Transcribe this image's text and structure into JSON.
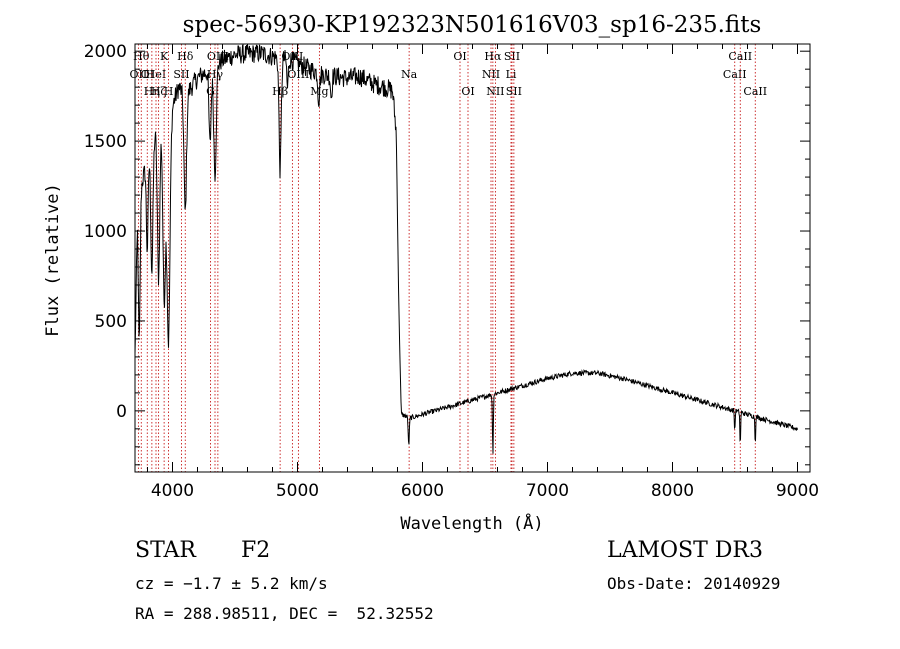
{
  "chart_data": {
    "type": "line",
    "title": "spec-56930-KP192323N501616V03_sp16-235.fits",
    "xlabel": "Wavelength (Å)",
    "ylabel": "Flux (relative)",
    "xlim": [
      3700,
      9100
    ],
    "ylim": [
      -340,
      2040
    ],
    "xticks": [
      4000,
      5000,
      6000,
      7000,
      8000,
      9000
    ],
    "yticks": [
      0,
      500,
      1000,
      1500,
      2000
    ],
    "series": [
      {
        "name": "flux",
        "anchors": [
          [
            3700,
            300
          ],
          [
            3720,
            1100
          ],
          [
            3750,
            1250
          ],
          [
            3800,
            1400
          ],
          [
            3850,
            1500
          ],
          [
            3900,
            1680
          ],
          [
            3950,
            1600
          ],
          [
            4000,
            1700
          ],
          [
            4050,
            1800
          ],
          [
            4100,
            1750
          ],
          [
            4200,
            1850
          ],
          [
            4300,
            1900
          ],
          [
            4400,
            1950
          ],
          [
            4500,
            1980
          ],
          [
            4700,
            1990
          ],
          [
            4850,
            1960
          ],
          [
            4950,
            1950
          ],
          [
            5100,
            1900
          ],
          [
            5200,
            1870
          ],
          [
            5300,
            1860
          ],
          [
            5400,
            1850
          ],
          [
            5500,
            1860
          ],
          [
            5600,
            1820
          ],
          [
            5700,
            1800
          ],
          [
            5760,
            1780
          ],
          [
            5790,
            1550
          ],
          [
            5810,
            600
          ],
          [
            5830,
            -20
          ],
          [
            5870,
            -30
          ],
          [
            5900,
            -40
          ],
          [
            6000,
            -20
          ],
          [
            6200,
            20
          ],
          [
            6400,
            60
          ],
          [
            6600,
            100
          ],
          [
            6800,
            140
          ],
          [
            7000,
            180
          ],
          [
            7200,
            210
          ],
          [
            7400,
            210
          ],
          [
            7600,
            180
          ],
          [
            7800,
            140
          ],
          [
            8000,
            100
          ],
          [
            8200,
            60
          ],
          [
            8400,
            20
          ],
          [
            8600,
            -20
          ],
          [
            8800,
            -60
          ],
          [
            9000,
            -100
          ]
        ],
        "absorption": [
          {
            "center": 3734,
            "depth": 800,
            "width": 10
          },
          {
            "center": 3798,
            "depth": 500,
            "width": 10
          },
          {
            "center": 3835,
            "depth": 700,
            "width": 12
          },
          {
            "center": 3889,
            "depth": 900,
            "width": 14
          },
          {
            "center": 3933,
            "depth": 1000,
            "width": 15
          },
          {
            "center": 3968,
            "depth": 1250,
            "width": 17
          },
          {
            "center": 4102,
            "depth": 650,
            "width": 14
          },
          {
            "center": 4300,
            "depth": 420,
            "width": 12
          },
          {
            "center": 4340,
            "depth": 600,
            "width": 14
          },
          {
            "center": 4861,
            "depth": 620,
            "width": 12
          },
          {
            "center": 4920,
            "depth": 160,
            "width": 8
          },
          {
            "center": 5170,
            "depth": 150,
            "width": 10
          },
          {
            "center": 5270,
            "depth": 120,
            "width": 8
          },
          {
            "center": 5890,
            "depth": 160,
            "width": 6
          },
          {
            "center": 6563,
            "depth": 330,
            "width": 5
          },
          {
            "center": 8498,
            "depth": 120,
            "width": 4
          },
          {
            "center": 8542,
            "depth": 200,
            "width": 4
          },
          {
            "center": 8662,
            "depth": 150,
            "width": 4
          }
        ]
      }
    ],
    "lines": [
      {
        "wave": 3727,
        "label": "OII",
        "row": 2
      },
      {
        "wave": 3750,
        "label": "Hθ",
        "row": 1
      },
      {
        "wave": 3798,
        "label": "OI",
        "row": 2
      },
      {
        "wave": 3835,
        "label": "Hη",
        "row": 3
      },
      {
        "wave": 3868,
        "label": "HeI",
        "row": 2
      },
      {
        "wave": 3889,
        "label": "Hζ",
        "row": 3
      },
      {
        "wave": 3933,
        "label": "K",
        "row": 1
      },
      {
        "wave": 3968,
        "label": "H",
        "row": 3
      },
      {
        "wave": 4072,
        "label": "SII",
        "row": 2
      },
      {
        "wave": 4102,
        "label": "Hδ",
        "row": 1
      },
      {
        "wave": 4304,
        "label": "G",
        "row": 3
      },
      {
        "wave": 4340,
        "label": "Hγ",
        "row": 2
      },
      {
        "wave": 4363,
        "label": "OIII",
        "row": 1
      },
      {
        "wave": 4861,
        "label": "Hβ",
        "row": 3
      },
      {
        "wave": 4959,
        "label": "OIII",
        "row": 1
      },
      {
        "wave": 5007,
        "label": "OIII",
        "row": 2
      },
      {
        "wave": 5175,
        "label": "Mg",
        "row": 3
      },
      {
        "wave": 5893,
        "label": "Na",
        "row": 2
      },
      {
        "wave": 6300,
        "label": "OI",
        "row": 1
      },
      {
        "wave": 6364,
        "label": "OI",
        "row": 3
      },
      {
        "wave": 6548,
        "label": "NII",
        "row": 2
      },
      {
        "wave": 6563,
        "label": "Hα",
        "row": 1
      },
      {
        "wave": 6583,
        "label": "NII",
        "row": 3
      },
      {
        "wave": 6708,
        "label": "Li",
        "row": 2
      },
      {
        "wave": 6716,
        "label": "SII",
        "row": 1
      },
      {
        "wave": 6731,
        "label": "SII",
        "row": 3
      },
      {
        "wave": 8498,
        "label": "CaII",
        "row": 2
      },
      {
        "wave": 8542,
        "label": "CaII",
        "row": 1
      },
      {
        "wave": 8662,
        "label": "CaII",
        "row": 3
      }
    ]
  },
  "info": {
    "class": "STAR",
    "subclass": "F2",
    "survey": "LAMOST DR3",
    "cz": "cz = −1.7 ± 5.2 km/s",
    "obs_date": "Obs-Date: 20140929",
    "coords": "RA = 288.98511, DEC =  52.32552"
  }
}
